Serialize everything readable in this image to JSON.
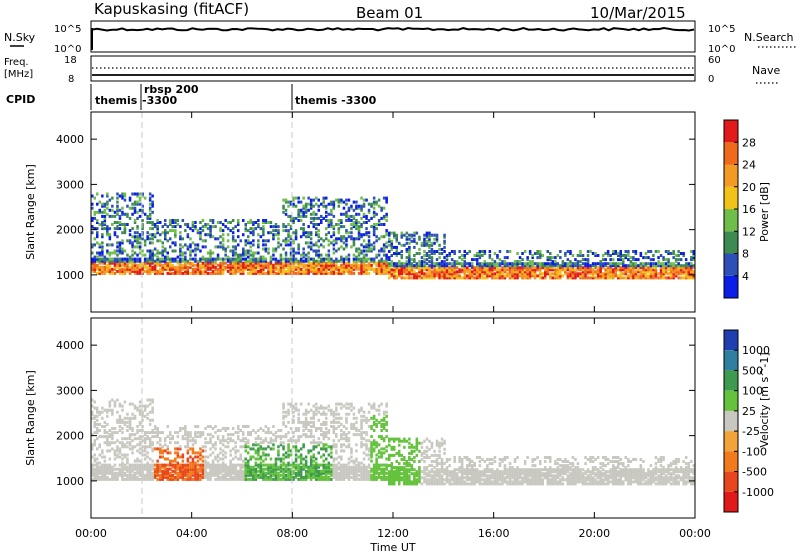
{
  "header": {
    "station": "Kapuskasing (fitACF)",
    "beam": "Beam 01",
    "date": "10/Mar/2015"
  },
  "top_panels": {
    "nsky_label": "N.Sky",
    "nsky_ticks": [
      "10^5",
      "10^0"
    ],
    "nsearch_label": "N.Search",
    "nsearch_ticks": [
      "10^5",
      "10^0"
    ],
    "freq_label_1": "Freq.",
    "freq_label_2": "[MHz]",
    "freq_ticks": [
      "18",
      "8"
    ],
    "nave_label": "Nave",
    "nave_ticks": [
      "60",
      "0"
    ],
    "cpid_label": "CPID",
    "cpid_segments": [
      {
        "hour": 0.0,
        "text": "themis"
      },
      {
        "hour": 2.0,
        "text": "rbsp 200"
      },
      {
        "hour": 2.0,
        "text": "-3300"
      },
      {
        "hour": 8.0,
        "text": "themis -3300"
      }
    ]
  },
  "x_axis": {
    "label": "Time UT",
    "ticks": [
      "00:00",
      "04:00",
      "08:00",
      "12:00",
      "16:00",
      "20:00",
      "00:00"
    ],
    "range_hours": [
      0,
      24
    ]
  },
  "chart_data": [
    {
      "type": "heatmap",
      "name": "power",
      "ylabel": "Slant Range [km]",
      "yticks": [
        "1000",
        "2000",
        "3000",
        "4000"
      ],
      "ylim": [
        180,
        4600
      ],
      "xlim": [
        0,
        24
      ],
      "colorbar_label": "Power [dB]",
      "colorbar_ticks": [
        "4",
        "8",
        "12",
        "16",
        "20",
        "24",
        "28"
      ],
      "colorbar_colors": [
        "#0a1ee8",
        "#2d4fb8",
        "#3d8a52",
        "#6fbd4b",
        "#f2c21b",
        "#f29a24",
        "#f06a1c",
        "#e31a1c"
      ],
      "scatter_bands": [
        {
          "t0": 0.0,
          "t1": 2.5,
          "r_lo": 1000,
          "r_hi": 2800
        },
        {
          "t0": 2.5,
          "t1": 7.5,
          "r_lo": 1000,
          "r_hi": 2200
        },
        {
          "t0": 7.5,
          "t1": 11.7,
          "r_lo": 1000,
          "r_hi": 2700
        },
        {
          "t0": 11.7,
          "t1": 14.0,
          "r_lo": 900,
          "r_hi": 1900
        },
        {
          "t0": 14.0,
          "t1": 24.0,
          "r_lo": 900,
          "r_hi": 1500
        }
      ]
    },
    {
      "type": "heatmap",
      "name": "velocity",
      "ylabel": "Slant Range [km]",
      "yticks": [
        "1000",
        "2000",
        "3000",
        "4000"
      ],
      "ylim": [
        180,
        4600
      ],
      "xlim": [
        0,
        24
      ],
      "colorbar_label": "Velocity [m s^-1]",
      "colorbar_ticks": [
        "1000",
        "500",
        "100",
        "25",
        "-25",
        "-100",
        "-500",
        "-1000"
      ],
      "colorbar_colors": [
        "#1f3fb0",
        "#2f7fa0",
        "#3e9a4f",
        "#64c23c",
        "#c8c8c0",
        "#f2a43a",
        "#f07a1c",
        "#e8461e",
        "#e01a1a"
      ]
    }
  ]
}
